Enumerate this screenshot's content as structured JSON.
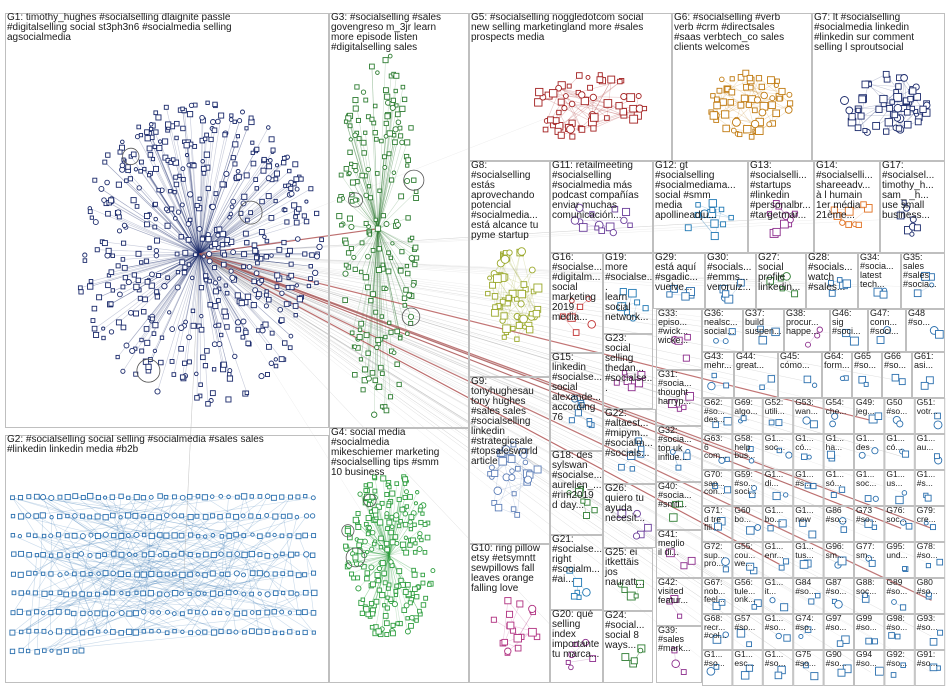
{
  "graph": {
    "groups": [
      {
        "id": "G1",
        "label": "G1: timothy_hughes #socialselling dlaignite passle\n#digitalselling social st3ph3n6 #socialmedia selling\nagsocialmedia",
        "color": "#1b2a6b",
        "nodes": 520
      },
      {
        "id": "G2",
        "label": "G2: #socialselling social selling #socialmedia #sales sales\n#linkedin linkedin media #b2b",
        "color": "#2a6fae",
        "nodes": 330
      },
      {
        "id": "G3",
        "label": "G3: #socialselling #sales\ngovengreso m_3jr learn\nmore episode listen\n#digitalselling sales",
        "color": "#2e7d32",
        "nodes": 210
      },
      {
        "id": "G4",
        "label": "G4: social media\n#socialmedia\nmikeschiemer marketing\n#socialselling tips #smm\n10 business",
        "color": "#2e9e3f",
        "nodes": 230
      },
      {
        "id": "G5",
        "label": "G5: #socialselling noggledotcom social\nnew selling marketingland more #sales\nprospects media",
        "color": "#a32020",
        "nodes": 150
      },
      {
        "id": "G6",
        "label": "G6: #socialselling #verb\nverb #crm #directsales\n#saas verbtech_co sales\nclients welcomes",
        "color": "#c07a10",
        "nodes": 90
      },
      {
        "id": "G7",
        "label": "G7: lt #socialselling\n#socialmedia linkedin\n#linkedin sur comment\nselling l sproutsocial",
        "color": "#1b2a6b",
        "nodes": 70
      },
      {
        "id": "G8",
        "label": "G8:\n#socialselling\nestás\naprovechando\npotencial\n#socialmedia...\nestá alcance tu\npyme startup",
        "color": "#9aa82a",
        "nodes": 55
      },
      {
        "id": "G9",
        "label": "G9:\ntonyhughesau\ntony hughes\n#sales sales\n#socialselling\nlinkedin\n#strategicsale\n#topsalesworld\narticle",
        "color": "#5e7fb8",
        "nodes": 30
      },
      {
        "id": "G10",
        "label": "G10: ring pillow\netsy #etsymntt\nsewpillows fall\nleaves orange\nfalling love",
        "color": "#b03080",
        "nodes": 20
      },
      {
        "id": "G11",
        "label": "G11: retailmeeting\n#socialselling\n#socialmedia más\npodcast compañías\nenviar muchas\ncomunicación...",
        "color": "#6a3d9a",
        "nodes": 14
      },
      {
        "id": "G12",
        "label": "G12: gt\n#socialselling\n#socialmediama...\nsocial #smm\nmedia\napollineadju...",
        "color": "#1f78b4",
        "nodes": 12
      },
      {
        "id": "G13",
        "label": "G13:\n#socialselli...\n#startups\n#linkedin\n#personalbr...\n#targetmar...",
        "color": "#8c2d8c",
        "nodes": 10
      },
      {
        "id": "G14",
        "label": "G14:\n#socialselli...\nshareeadv...\nà l humain\n1er média\n21ème...",
        "color": "#e07020",
        "nodes": 9
      },
      {
        "id": "G15",
        "label": "G15:\nlinkedin\n#socialse...\nsocial\nalexande...\naccording\n76",
        "color": "#2a6fae",
        "nodes": 8
      },
      {
        "id": "G16",
        "label": "G16:\n#socialse...\n#digitalm...\nsocial\nmarketing\n2019\nmedia...",
        "color": "#c03030",
        "nodes": 8
      },
      {
        "id": "G17",
        "label": "G17:\n#socialsel...\ntimothy_h...\nsam_ _h...\nuse small\nbusiness...",
        "color": "#1b2a6b",
        "nodes": 8
      },
      {
        "id": "G18",
        "label": "G18: des\nsylswan\n#socialse...\naurelien_...\n#rim2019\nd day...",
        "color": "#2e7d32",
        "nodes": 7
      },
      {
        "id": "G19",
        "label": "G19:\nmore\n#socialse...\nlearn\nsocial\nnetwork...",
        "color": "#1f78b4",
        "nodes": 7
      },
      {
        "id": "G20",
        "label": "G20: qué\nselling\nindex\nimportante\ntu marca...",
        "color": "#8c2d8c",
        "nodes": 6
      },
      {
        "id": "G21",
        "label": "G21:\n#socialse...\nright\n#socialm...\n#ai...",
        "color": "#1f78b4",
        "nodes": 6
      },
      {
        "id": "G22",
        "label": "G22:\n#altaest...\n#mipym...\n#socialm...\n#socials...",
        "color": "#2a6fae",
        "nodes": 6
      },
      {
        "id": "G23",
        "label": "G23:\nsocial\nselling\nthedan...\n#socialse...",
        "color": "#8c2d8c",
        "nodes": 6
      },
      {
        "id": "G24",
        "label": "G24:\n#social...\nsocial 8\nways...",
        "color": "#2e7d32",
        "nodes": 5
      },
      {
        "id": "G25",
        "label": "G25: ei\nitkettäis\njos\nnauratt...",
        "color": "#2e7d32",
        "nodes": 5
      },
      {
        "id": "G26",
        "label": "G26:\nquiero tu\nayuda\nnecesit...",
        "color": "#6a3d9a",
        "nodes": 5
      },
      {
        "id": "G27",
        "label": "G27:\nsocial\nprofile\nlinkedin...",
        "color": "#2e7d32",
        "nodes": 5
      },
      {
        "id": "G28",
        "label": "G28:\n#socials...\nwatch\n#sales...",
        "color": "#2a6fae",
        "nodes": 5
      },
      {
        "id": "G29",
        "label": "G29:\nestá aquí\n#sgadic...\nvuelve...",
        "color": "#2a6fae",
        "nodes": 5
      },
      {
        "id": "G30",
        "label": "G30:\n#socials...\n#emms...\nveroruiz...",
        "color": "#2a6fae",
        "nodes": 5
      },
      {
        "id": "G31",
        "label": "G31:\n#socia...\nthought\nharryp...",
        "color": "#8c2d8c",
        "nodes": 4
      },
      {
        "id": "G32",
        "label": "G32:\n#socia...\ntop uk\ninflue...",
        "color": "#2a6fae",
        "nodes": 4
      },
      {
        "id": "G33",
        "label": "G33:\nepiso...\n#wick...\nwicke...",
        "color": "#8c2d8c",
        "nodes": 4
      },
      {
        "id": "G34",
        "label": "G34:\n#socia...\nlatest\ntech...",
        "color": "#2a6fae",
        "nodes": 4
      },
      {
        "id": "G35",
        "label": "G35:\nsales\n#sales\n#socia...",
        "color": "#2a6fae",
        "nodes": 4
      },
      {
        "id": "G36",
        "label": "G36:\nnealsc...\nsocial...",
        "color": "#2a6fae",
        "nodes": 3
      },
      {
        "id": "G37",
        "label": "G37:\nbuild\nsuspen...",
        "color": "#2a6fae",
        "nodes": 3
      },
      {
        "id": "G38",
        "label": "G38:\nprocur...\nhappe...",
        "color": "#8c2d8c",
        "nodes": 3
      },
      {
        "id": "G39",
        "label": "G39:\n#sales\n#mark...",
        "color": "#8c2d8c",
        "nodes": 3
      },
      {
        "id": "G40",
        "label": "G40:\n#socia...\n#smti...",
        "color": "#2e7d32",
        "nodes": 3
      },
      {
        "id": "G41",
        "label": "G41:\nmeglio\nil di...",
        "color": "#8c2d8c",
        "nodes": 3
      },
      {
        "id": "G42",
        "label": "G42:\nvisited\nfeatur...",
        "color": "#8c2d8c",
        "nodes": 3
      },
      {
        "id": "G43",
        "label": "G43:\nmehr...",
        "color": "#2a6fae",
        "nodes": 3
      },
      {
        "id": "G44",
        "label": "G44:\ngreat...",
        "color": "#2a6fae",
        "nodes": 2
      },
      {
        "id": "G45",
        "label": "G45:\ncómo...",
        "color": "#2a6fae",
        "nodes": 2
      },
      {
        "id": "G46",
        "label": "G46:\nsig\n#soci...",
        "color": "#2a6fae",
        "nodes": 2
      },
      {
        "id": "G47",
        "label": "G47:\nconn...\n#soci...",
        "color": "#2a6fae",
        "nodes": 2
      },
      {
        "id": "G48",
        "label": "G48\n#so...",
        "color": "#2a6fae",
        "nodes": 2
      },
      {
        "id": "G49",
        "label": "G49:\njeg...",
        "color": "#2a6fae",
        "nodes": 2
      },
      {
        "id": "G50",
        "label": "G50\n#so...",
        "color": "#2a6fae",
        "nodes": 2
      },
      {
        "id": "G51",
        "label": "G51:\nvotr...",
        "color": "#2a6fae",
        "nodes": 2
      },
      {
        "id": "G52",
        "label": "G52:\nutili...",
        "color": "#2a6fae",
        "nodes": 2
      },
      {
        "id": "G53",
        "label": "G53:\nwan...",
        "color": "#2a6fae",
        "nodes": 2
      },
      {
        "id": "G54",
        "label": "G54:\nche...",
        "color": "#2a6fae",
        "nodes": 2
      },
      {
        "id": "G55",
        "label": "G55:\ncou...\nwe...",
        "color": "#2a6fae",
        "nodes": 2
      },
      {
        "id": "G56",
        "label": "G56:\ntule...\nonk...",
        "color": "#2a6fae",
        "nodes": 2
      },
      {
        "id": "G57",
        "label": "G57\n#so...",
        "color": "#2a6fae",
        "nodes": 2
      },
      {
        "id": "G58",
        "label": "G58:\nhelp\nbus...",
        "color": "#2a6fae",
        "nodes": 2
      },
      {
        "id": "G59",
        "label": "G59:\n#so...\nsoci...",
        "color": "#2a6fae",
        "nodes": 2
      },
      {
        "id": "G60",
        "label": "G60\nbo...",
        "color": "#2a6fae",
        "nodes": 2
      },
      {
        "id": "G61",
        "label": "G61:\nasi...",
        "color": "#2a6fae",
        "nodes": 2
      },
      {
        "id": "G62",
        "label": "G62:\n#so...\ndes...",
        "color": "#2a6fae",
        "nodes": 2
      },
      {
        "id": "G63",
        "label": "G63:\n6\ncom...",
        "color": "#2a6fae",
        "nodes": 2
      },
      {
        "id": "G64",
        "label": "G64:\nform...",
        "color": "#2a6fae",
        "nodes": 2
      },
      {
        "id": "G65",
        "label": "G65\n#so...",
        "color": "#2a6fae",
        "nodes": 2
      },
      {
        "id": "G66",
        "label": "G66\n#so...",
        "color": "#2a6fae",
        "nodes": 2
      },
      {
        "id": "G67",
        "label": "G67:\nnob...\nfeel...",
        "color": "#2a6fae",
        "nodes": 2
      },
      {
        "id": "G68",
        "label": "G68:\nrecr...\n#col...",
        "color": "#2a6fae",
        "nodes": 2
      },
      {
        "id": "G69",
        "label": "G69:\nalgo...",
        "color": "#2a6fae",
        "nodes": 2
      },
      {
        "id": "G70",
        "label": "G70:\nsap...\ncon...",
        "color": "#2a6fae",
        "nodes": 2
      },
      {
        "id": "G71",
        "label": "G71:\nd tre\nfili...",
        "color": "#2a6fae",
        "nodes": 2
      },
      {
        "id": "G72",
        "label": "G72:\nsup...\npro...",
        "color": "#2a6fae",
        "nodes": 2
      },
      {
        "id": "G73",
        "label": "G73\n#so...",
        "color": "#2a6fae",
        "nodes": 2
      },
      {
        "id": "G74",
        "label": "G74:\n#so...",
        "color": "#2a6fae",
        "nodes": 2
      },
      {
        "id": "G75",
        "label": "G75\n#so...",
        "color": "#2a6fae",
        "nodes": 2
      },
      {
        "id": "G76",
        "label": "G76:\nsoc...",
        "color": "#2a6fae",
        "nodes": 2
      },
      {
        "id": "G77",
        "label": "G77:\nsm...",
        "color": "#2a6fae",
        "nodes": 2
      },
      {
        "id": "G78",
        "label": "G78:\n#so...",
        "color": "#2a6fae",
        "nodes": 2
      },
      {
        "id": "G79",
        "label": "G79:\ncre...",
        "color": "#2a6fae",
        "nodes": 2
      },
      {
        "id": "G80",
        "label": "G80\n#so...",
        "color": "#2a6fae",
        "nodes": 2
      },
      {
        "id": "G81",
        "label": "G81:\nsoc...",
        "color": "#2a6fae",
        "nodes": 2
      },
      {
        "id": "G82",
        "label": "G82:\nlun...",
        "color": "#2a6fae",
        "nodes": 2
      },
      {
        "id": "G83",
        "label": "G83:\nsoc...",
        "color": "#2a6fae",
        "nodes": 2
      },
      {
        "id": "G84",
        "label": "G84\n#so...",
        "color": "#2a6fae",
        "nodes": 2
      },
      {
        "id": "G85",
        "label": "G85:\nsoc...",
        "color": "#2a6fae",
        "nodes": 2
      },
      {
        "id": "G86",
        "label": "G86\n#so...",
        "color": "#2a6fae",
        "nodes": 2
      },
      {
        "id": "G87",
        "label": "G87\n#so...",
        "color": "#2a6fae",
        "nodes": 2
      },
      {
        "id": "G88",
        "label": "G88:\nsoc...",
        "color": "#2a6fae",
        "nodes": 2
      },
      {
        "id": "G89",
        "label": "G89\n#so...",
        "color": "#2a6fae",
        "nodes": 2
      },
      {
        "id": "G90",
        "label": "G90\n#so...",
        "color": "#2a6fae",
        "nodes": 2
      },
      {
        "id": "G91",
        "label": "G91:\n#so...",
        "color": "#2a6fae",
        "nodes": 2
      },
      {
        "id": "G92",
        "label": "G92:\n#so...",
        "color": "#2a6fae",
        "nodes": 2
      },
      {
        "id": "G93",
        "label": "G93:\n#so...",
        "color": "#2a6fae",
        "nodes": 2
      },
      {
        "id": "G94",
        "label": "G94\n#so...",
        "color": "#2a6fae",
        "nodes": 2
      },
      {
        "id": "G95",
        "label": "G95:\nund...",
        "color": "#2a6fae",
        "nodes": 2
      },
      {
        "id": "G96",
        "label": "G96:\nsm...",
        "color": "#2a6fae",
        "nodes": 2
      },
      {
        "id": "G97",
        "label": "G97\n#so...",
        "color": "#2a6fae",
        "nodes": 2
      },
      {
        "id": "G98",
        "label": "G98:\n#so...",
        "color": "#2a6fae",
        "nodes": 2
      },
      {
        "id": "G99",
        "label": "G99\n#so...",
        "color": "#2a6fae",
        "nodes": 2
      },
      {
        "id": "G100",
        "label": "G1...\nsoc...",
        "color": "#2a6fae",
        "nodes": 2
      },
      {
        "id": "G101",
        "label": "G1...\ncó...",
        "color": "#2a6fae",
        "nodes": 2
      },
      {
        "id": "G102",
        "label": "G1...\nha...",
        "color": "#2a6fae",
        "nodes": 2
      },
      {
        "id": "G103",
        "label": "G1...\ndes",
        "color": "#2a6fae",
        "nodes": 2
      },
      {
        "id": "G104",
        "label": "G1...\ncó...",
        "color": "#2a6fae",
        "nodes": 2
      },
      {
        "id": "G105",
        "label": "G1...\nau...",
        "color": "#2a6fae",
        "nodes": 2
      },
      {
        "id": "G106",
        "label": "G1...\ndi...",
        "color": "#2a6fae",
        "nodes": 2
      },
      {
        "id": "G107",
        "label": "G1...\n#s...",
        "color": "#2a6fae",
        "nodes": 2
      },
      {
        "id": "G108",
        "label": "G1...\nsó...",
        "color": "#2a6fae",
        "nodes": 2
      },
      {
        "id": "G109",
        "label": "G1...\nsoc...",
        "color": "#2a6fae",
        "nodes": 2
      },
      {
        "id": "G110",
        "label": "G1...\nus...",
        "color": "#2a6fae",
        "nodes": 2
      },
      {
        "id": "G111",
        "label": "G1...\n#s...",
        "color": "#2a6fae",
        "nodes": 2
      },
      {
        "id": "G112",
        "label": "G1...\nbo...",
        "color": "#2a6fae",
        "nodes": 2
      },
      {
        "id": "G113",
        "label": "G1...\nnew",
        "color": "#2a6fae",
        "nodes": 2
      },
      {
        "id": "G114",
        "label": "G1...\nenr...",
        "color": "#2a6fae",
        "nodes": 2
      },
      {
        "id": "G115",
        "label": "G1...\ntus...",
        "color": "#2a6fae",
        "nodes": 2
      },
      {
        "id": "G116",
        "label": "G1...\nit...",
        "color": "#2a6fae",
        "nodes": 2
      },
      {
        "id": "G117",
        "label": "G1...\n#so...",
        "color": "#2a6fae",
        "nodes": 2
      },
      {
        "id": "G118",
        "label": "G1...\n#so...",
        "color": "#2a6fae",
        "nodes": 2
      },
      {
        "id": "G119",
        "label": "G1...\nesc...",
        "color": "#2a6fae",
        "nodes": 2
      },
      {
        "id": "G120",
        "label": "G1...\n#so...",
        "color": "#2a6fae",
        "nodes": 2
      }
    ]
  }
}
